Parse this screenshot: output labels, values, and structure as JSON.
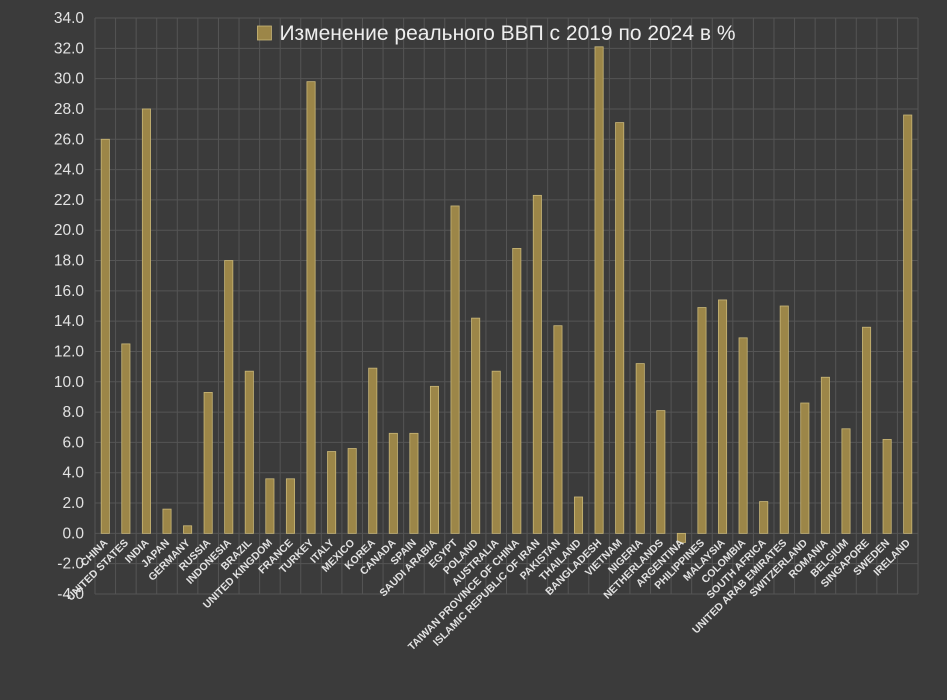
{
  "chart_data": {
    "type": "bar",
    "title": "",
    "legend": {
      "label": "Изменение реального ВВП с 2019 по 2024 в %",
      "position": "top-center"
    },
    "xlabel": "",
    "ylabel": "",
    "ylim": [
      -4,
      34
    ],
    "ytick_step": 2,
    "ytick_labels": [
      "-4.0",
      "-2.0",
      "0.0",
      "2.0",
      "4.0",
      "6.0",
      "8.0",
      "10.0",
      "12.0",
      "14.0",
      "16.0",
      "18.0",
      "20.0",
      "22.0",
      "24.0",
      "26.0",
      "28.0",
      "30.0",
      "32.0",
      "34.0"
    ],
    "grid": true,
    "categories": [
      "CHINA",
      "UNITED STATES",
      "INDIA",
      "JAPAN",
      "GERMANY",
      "RUSSIA",
      "INDONESIA",
      "BRAZIL",
      "UNITED KINGDOM",
      "FRANCE",
      "TURKEY",
      "ITALY",
      "MEXICO",
      "KOREA",
      "CANADA",
      "SPAIN",
      "SAUDI ARABIA",
      "EGYPT",
      "POLAND",
      "AUSTRALIA",
      "TAIWAN PROVINCE OF CHINA",
      "ISLAMIC REPUBLIC OF IRAN",
      "PAKISTAN",
      "THAILAND",
      "BANGLADESH",
      "VIETNAM",
      "NIGERIA",
      "NETHERLANDS",
      "ARGENTINA",
      "PHILIPPINES",
      "MALAYSIA",
      "COLOMBIA",
      "SOUTH AFRICA",
      "UNITED ARAB EMIRATES",
      "SWITZERLAND",
      "ROMANIA",
      "BELGIUM",
      "SINGAPORE",
      "SWEDEN",
      "IRELAND"
    ],
    "series": [
      {
        "name": "Изменение реального ВВП с 2019 по 2024 в %",
        "values": [
          26.0,
          12.5,
          28.0,
          1.6,
          0.5,
          9.3,
          18.0,
          10.7,
          3.6,
          3.6,
          29.8,
          5.4,
          5.6,
          10.9,
          6.6,
          6.6,
          9.7,
          21.6,
          14.2,
          10.7,
          18.8,
          22.3,
          13.7,
          2.4,
          32.1,
          27.1,
          11.2,
          8.1,
          -0.6,
          14.9,
          15.4,
          12.9,
          2.1,
          15.0,
          8.6,
          10.3,
          6.9,
          13.6,
          6.2,
          27.6
        ]
      }
    ],
    "colors": {
      "background": "#3b3b3b",
      "bar_fill": "#9c8648",
      "bar_stroke": "#c9b778",
      "grid": "#555555",
      "tick_text": "#e2e2e2",
      "legend_text": "#eeeeee"
    }
  }
}
